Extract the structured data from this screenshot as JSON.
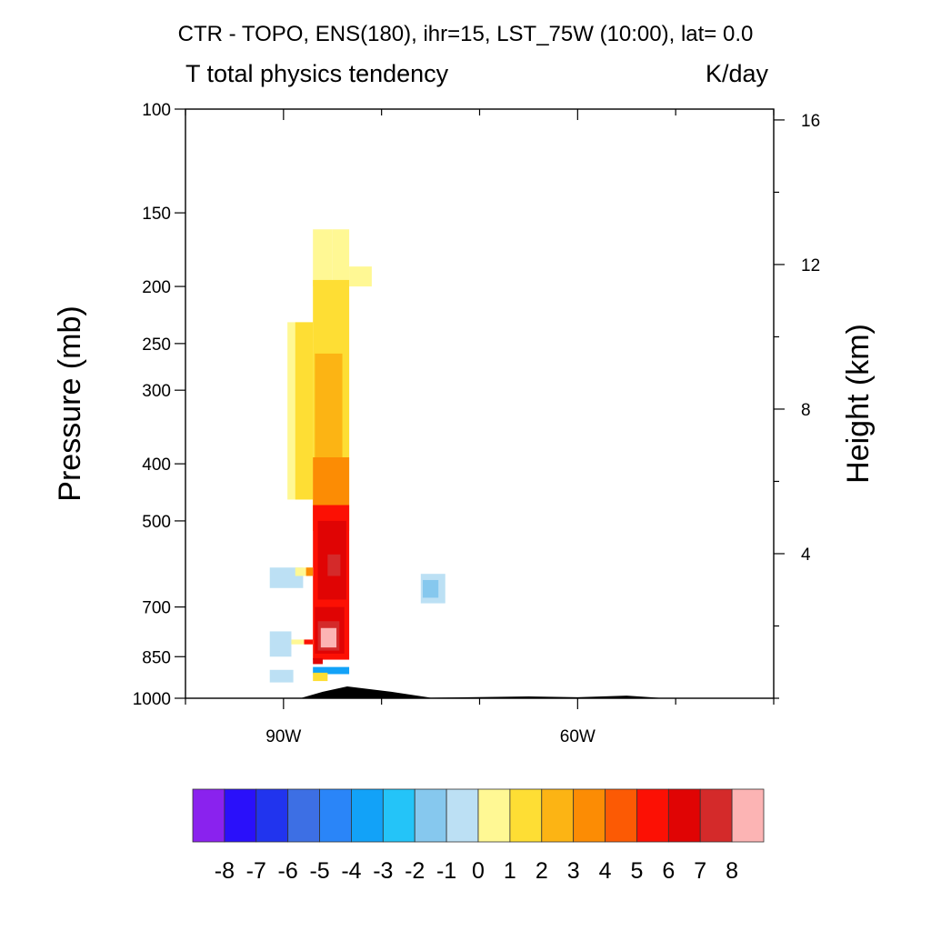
{
  "chart_data": {
    "type": "heatmap",
    "title": "CTR - TOPO, ENS(180), ihr=15, LST_75W (10:00), lat=  0.0",
    "subtitle": "T total physics tendency",
    "units": "K/day",
    "ylabel": "Pressure (mb)",
    "ylabel_right": "Height (km)",
    "xlabel": "",
    "x_ticks": [
      {
        "label": "90W",
        "value": -90
      },
      {
        "label": "60W",
        "value": -60
      }
    ],
    "xlim": [
      -100,
      -40
    ],
    "y_ticks": [
      {
        "label": "100",
        "value": 100
      },
      {
        "label": "150",
        "value": 150
      },
      {
        "label": "200",
        "value": 200
      },
      {
        "label": "250",
        "value": 250
      },
      {
        "label": "300",
        "value": 300
      },
      {
        "label": "400",
        "value": 400
      },
      {
        "label": "500",
        "value": 500
      },
      {
        "label": "700",
        "value": 700
      },
      {
        "label": "850",
        "value": 850
      },
      {
        "label": "1000",
        "value": 1000
      }
    ],
    "ylim": [
      1000,
      100
    ],
    "yscale": "log",
    "y_right_ticks": [
      {
        "label": "16",
        "value": 16
      },
      {
        "label": "12",
        "value": 12
      },
      {
        "label": "8",
        "value": 8
      },
      {
        "label": "4",
        "value": 4
      }
    ],
    "colorbar": {
      "labels": [
        "-8",
        "-7",
        "-6",
        "-5",
        "-4",
        "-3",
        "-2",
        "-1",
        "0",
        "1",
        "2",
        "3",
        "4",
        "5",
        "6",
        "7",
        "8"
      ],
      "colors": [
        "#8a22ee",
        "#2a10fa",
        "#2134ee",
        "#3d6fe4",
        "#2a85f8",
        "#12a2f8",
        "#24c4f8",
        "#86c8ee",
        "#bce0f4",
        "#fff894",
        "#fede34",
        "#fcb414",
        "#fc8c04",
        "#fc5a04",
        "#fc1004",
        "#e00404",
        "#d42a2a",
        "#fcb4b4"
      ]
    },
    "regions": [
      {
        "lon": [
          -87.0,
          -85.0
        ],
        "p": [
          160,
          200
        ],
        "v": 0.5
      },
      {
        "lon": [
          -85.0,
          -83.3
        ],
        "p": [
          160,
          200
        ],
        "v": 0.5
      },
      {
        "lon": [
          -83.3,
          -81.0
        ],
        "p": [
          185,
          200
        ],
        "v": 0.5
      },
      {
        "lon": [
          -89.6,
          -87.0
        ],
        "p": [
          230,
          460
        ],
        "v": 0.5
      },
      {
        "lon": [
          -88.8,
          -87.0
        ],
        "p": [
          230,
          460
        ],
        "v": 1.5
      },
      {
        "lon": [
          -87.0,
          -83.3
        ],
        "p": [
          195,
          500
        ],
        "v": 1.5
      },
      {
        "lon": [
          -86.8,
          -84.0
        ],
        "p": [
          260,
          400
        ],
        "v": 2.5
      },
      {
        "lon": [
          -87.0,
          -83.3
        ],
        "p": [
          390,
          520
        ],
        "v": 3.5
      },
      {
        "lon": [
          -87.0,
          -83.3
        ],
        "p": [
          470,
          860
        ],
        "v": 5.5
      },
      {
        "lon": [
          -86.5,
          -83.6
        ],
        "p": [
          500,
          680
        ],
        "v": 6.5
      },
      {
        "lon": [
          -85.5,
          -84.2
        ],
        "p": [
          570,
          620
        ],
        "v": 7.5
      },
      {
        "lon": [
          -86.8,
          -83.8
        ],
        "p": [
          700,
          840
        ],
        "v": 6.5
      },
      {
        "lon": [
          -86.5,
          -84.3
        ],
        "p": [
          740,
          830
        ],
        "v": 7.5
      },
      {
        "lon": [
          -86.2,
          -84.6
        ],
        "p": [
          760,
          820
        ],
        "v": 8.5
      },
      {
        "lon": [
          -91.4,
          -88.0
        ],
        "p": [
          600,
          650
        ],
        "v": -0.5
      },
      {
        "lon": [
          -88.8,
          -87.0
        ],
        "p": [
          600,
          620
        ],
        "v": 0.5
      },
      {
        "lon": [
          -87.7,
          -87.0
        ],
        "p": [
          600,
          620
        ],
        "v": 3.5
      },
      {
        "lon": [
          -91.4,
          -89.2
        ],
        "p": [
          770,
          850
        ],
        "v": -0.5
      },
      {
        "lon": [
          -89.2,
          -87.0
        ],
        "p": [
          795,
          810
        ],
        "v": 0.5
      },
      {
        "lon": [
          -87.9,
          -87.0
        ],
        "p": [
          795,
          810
        ],
        "v": 5.5
      },
      {
        "lon": [
          -91.4,
          -89.0
        ],
        "p": [
          895,
          940
        ],
        "v": -0.5
      },
      {
        "lon": [
          -87.0,
          -83.3
        ],
        "p": [
          885,
          910
        ],
        "v": -3.5
      },
      {
        "lon": [
          -87.0,
          -85.5
        ],
        "p": [
          905,
          935
        ],
        "v": 1.5
      },
      {
        "lon": [
          -87.0,
          -86.0
        ],
        "p": [
          855,
          875
        ],
        "v": 6.5
      },
      {
        "lon": [
          -76.0,
          -73.5
        ],
        "p": [
          615,
          690
        ],
        "v": -0.5
      },
      {
        "lon": [
          -75.8,
          -74.2
        ],
        "p": [
          630,
          675
        ],
        "v": -1.5
      }
    ],
    "terrain": {
      "lon": [
        -100,
        -88.3,
        -86.0,
        -83.5,
        -79.0,
        -75.0,
        -71.0,
        -65.0,
        -60.0,
        -55.0,
        -51.0,
        -40
      ],
      "p": [
        1000,
        1000,
        975,
        955,
        975,
        998,
        996,
        993,
        996,
        990,
        1000,
        1000
      ]
    }
  }
}
